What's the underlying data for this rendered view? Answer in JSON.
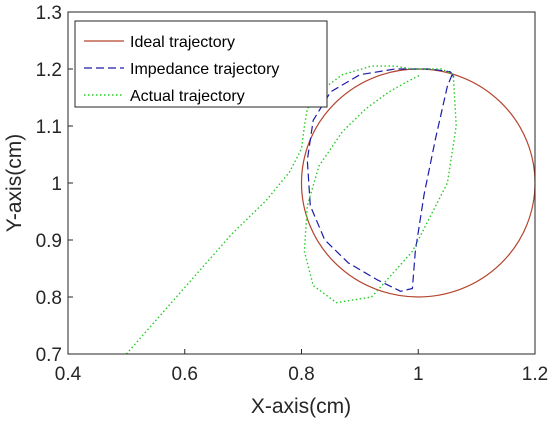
{
  "chart_data": {
    "type": "line",
    "title": "",
    "xlabel": "X-axis(cm)",
    "ylabel": "Y-axis(cm)",
    "xlim": [
      0.4,
      1.2
    ],
    "ylim": [
      0.7,
      1.3
    ],
    "x_ticks": [
      "0.4",
      "0.6",
      "0.8",
      "1",
      "1.2"
    ],
    "y_ticks": [
      "0.7",
      "0.8",
      "0.9",
      "1",
      "1.1",
      "1.2",
      "1.3"
    ],
    "grid": false,
    "legend_position": "top-left",
    "series": [
      {
        "name": "Ideal trajectory",
        "style": "solid",
        "color": "#b5452f",
        "shape": "circle",
        "center": [
          1.0,
          1.0
        ],
        "radius": 0.2
      },
      {
        "name": "Impedance trajectory",
        "style": "dashed",
        "color": "#1c1ca8",
        "x": [
          1.058,
          1.05,
          1.03,
          1.01,
          0.995,
          0.99,
          0.97,
          0.93,
          0.88,
          0.84,
          0.815,
          0.81,
          0.82,
          0.85,
          0.9,
          0.96,
          1.02,
          1.055,
          1.062,
          1.058
        ],
        "y": [
          1.19,
          1.17,
          1.08,
          0.98,
          0.88,
          0.815,
          0.81,
          0.83,
          0.86,
          0.9,
          0.96,
          1.04,
          1.11,
          1.16,
          1.19,
          1.2,
          1.2,
          1.195,
          1.185,
          1.19
        ]
      },
      {
        "name": "Actual trajectory",
        "style": "dotted",
        "color": "#22cc22",
        "x": [
          0.5,
          0.56,
          0.62,
          0.68,
          0.74,
          0.78,
          0.8,
          0.805,
          0.81,
          0.83,
          0.87,
          0.92,
          0.96,
          0.99,
          1.0,
          1.01,
          1.04,
          1.06,
          1.065,
          1.05,
          0.99,
          0.92,
          0.86,
          0.82,
          0.805,
          0.81,
          0.83,
          0.87,
          0.91,
          0.95,
          0.985,
          1.005
        ],
        "y": [
          0.7,
          0.77,
          0.84,
          0.91,
          0.97,
          1.02,
          1.06,
          1.1,
          1.13,
          1.16,
          1.19,
          1.205,
          1.205,
          1.2,
          1.2,
          1.2,
          1.2,
          1.19,
          1.1,
          1.0,
          0.88,
          0.8,
          0.79,
          0.82,
          0.88,
          0.96,
          1.03,
          1.09,
          1.13,
          1.16,
          1.18,
          1.19
        ]
      }
    ]
  }
}
